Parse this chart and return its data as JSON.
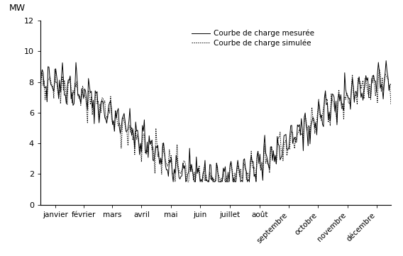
{
  "title": "",
  "ylabel": "MW",
  "ylim": [
    0,
    12
  ],
  "yticks": [
    0,
    2,
    4,
    6,
    8,
    10,
    12
  ],
  "months": [
    "janvier",
    "février",
    "mars",
    "avril",
    "mai",
    "juin",
    "juillet",
    "août",
    "septembre",
    "octobre",
    "novembre",
    "décembre"
  ],
  "legend_measured": "Courbe de charge mesurée",
  "legend_simulated": "Courbe de charge simulée",
  "line_color": "#000000",
  "background_color": "#ffffff",
  "n_points": 365,
  "seasonal_mean": 5.0,
  "seasonal_amplitude": 3.2,
  "weekly_amplitude": 0.6,
  "noise_std_measured": 0.35,
  "noise_std_simulated": 0.3,
  "month_days": [
    0,
    31,
    59,
    90,
    120,
    151,
    181,
    212,
    243,
    273,
    304,
    334,
    365
  ]
}
